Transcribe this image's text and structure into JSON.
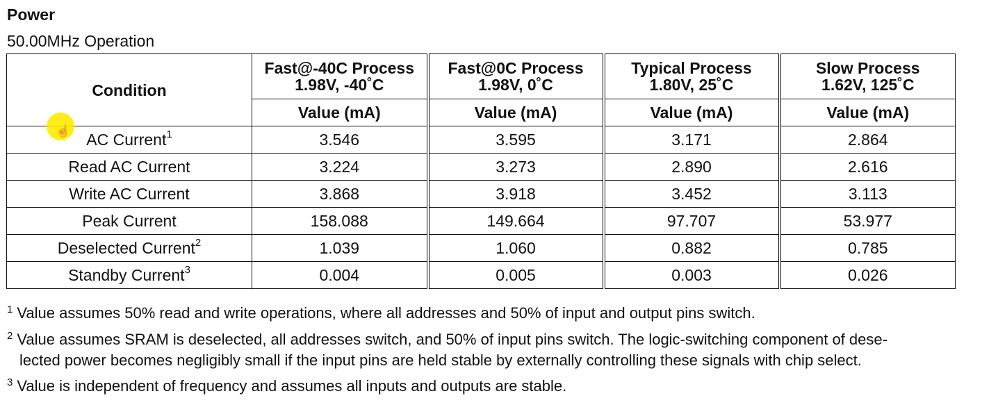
{
  "title": "Power",
  "subtitle": "50.00MHz Operation",
  "table": {
    "condition_header": "Condition",
    "columns": [
      {
        "line1": "Fast@-40C Process",
        "line2": "1.98V, -40˚C",
        "unit": "Value (mA)"
      },
      {
        "line1": "Fast@0C Process",
        "line2": "1.98V, 0˚C",
        "unit": "Value (mA)"
      },
      {
        "line1": "Typical Process",
        "line2": "1.80V, 25˚C",
        "unit": "Value (mA)"
      },
      {
        "line1": "Slow Process",
        "line2": "1.62V, 125˚C",
        "unit": "Value (mA)"
      }
    ],
    "rows": [
      {
        "label": "AC Current",
        "sup": "1",
        "values": [
          "3.546",
          "3.595",
          "3.171",
          "2.864"
        ]
      },
      {
        "label": "Read AC Current",
        "sup": "",
        "values": [
          "3.224",
          "3.273",
          "2.890",
          "2.616"
        ]
      },
      {
        "label": "Write AC Current",
        "sup": "",
        "values": [
          "3.868",
          "3.918",
          "3.452",
          "3.113"
        ]
      },
      {
        "label": "Peak Current",
        "sup": "",
        "values": [
          "158.088",
          "149.664",
          "97.707",
          "53.977"
        ]
      },
      {
        "label": "Deselected Current",
        "sup": "2",
        "values": [
          "1.039",
          "1.060",
          "0.882",
          "0.785"
        ]
      },
      {
        "label": "Standby Current",
        "sup": "3",
        "values": [
          "0.004",
          "0.005",
          "0.003",
          "0.026"
        ]
      }
    ]
  },
  "footnotes": [
    {
      "mark": "1",
      "line1": "Value assumes 50% read and write operations, where all addresses and 50% of input and output pins switch.",
      "line2": ""
    },
    {
      "mark": "2",
      "line1": "Value assumes SRAM is deselected, all addresses switch, and 50% of input pins switch. The logic-switching component of dese-",
      "line2": "lected power becomes negligibly small if the input pins are held stable by externally controlling these signals with chip select."
    },
    {
      "mark": "3",
      "line1": "Value is independent of frequency and assumes all inputs and outputs are stable.",
      "line2": ""
    }
  ],
  "cursor_icon": "hand-pointer-icon"
}
